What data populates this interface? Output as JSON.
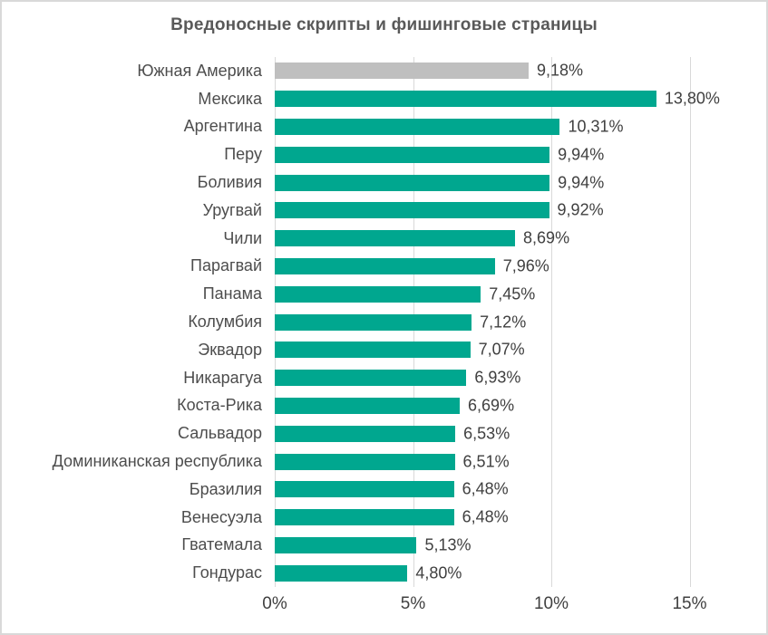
{
  "title": "Вредоносные скрипты и фишинговые страницы",
  "chart_data": {
    "type": "bar",
    "orientation": "horizontal",
    "title": "Вредоносные скрипты и фишинговые страницы",
    "categories": [
      "Южная Америка",
      "Мексика",
      "Аргентина",
      "Перу",
      "Боливия",
      "Уругвай",
      "Чили",
      "Парагвай",
      "Панама",
      "Колумбия",
      "Эквадор",
      "Никарагуа",
      "Коста-Рика",
      "Сальвадор",
      "Доминиканская республика",
      "Бразилия",
      "Венесуэла",
      "Гватемала",
      "Гондурас"
    ],
    "values": [
      9.18,
      13.8,
      10.31,
      9.94,
      9.94,
      9.92,
      8.69,
      7.96,
      7.45,
      7.12,
      7.07,
      6.93,
      6.69,
      6.53,
      6.51,
      6.48,
      6.48,
      5.13,
      4.8
    ],
    "value_labels": [
      "9,18%",
      "13,80%",
      "10,31%",
      "9,94%",
      "9,94%",
      "9,92%",
      "8,69%",
      "7,96%",
      "7,45%",
      "7,12%",
      "7,07%",
      "6,93%",
      "6,69%",
      "6,53%",
      "6,51%",
      "6,48%",
      "6,48%",
      "5,13%",
      "4,80%"
    ],
    "summary_index": 0,
    "xlabel": "",
    "ylabel": "",
    "xlim": [
      0,
      17.8
    ],
    "x_ticks": [
      0,
      5,
      10,
      15
    ],
    "x_tick_labels": [
      "0%",
      "5%",
      "10%",
      "15%"
    ],
    "grid": "vertical",
    "legend": "none",
    "colors": {
      "bar": "#00a78f",
      "summary_bar": "#bfbfbf",
      "gridline": "#d9d9d9",
      "category_text": "#4d4d4d",
      "value_text": "#404040",
      "title_text": "#595959",
      "frame_border": "#d9d9d9"
    }
  }
}
